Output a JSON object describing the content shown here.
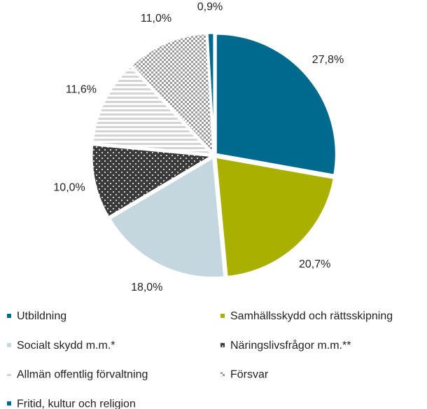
{
  "chart_data": {
    "type": "pie",
    "categories": [
      "Utbildning",
      "Samhällsskydd och rättsskipning",
      "Socialt skydd m.m.*",
      "Näringslivsfrågor m.m.**",
      "Allmän offentlig förvaltning",
      "Försvar",
      "Fritid, kultur och religion"
    ],
    "values": [
      27.8,
      20.7,
      18.0,
      10.0,
      11.6,
      11.0,
      0.9
    ],
    "value_labels": [
      "27,8%",
      "20,7%",
      "18,0%",
      "10,0%",
      "11,6%",
      "11,0%",
      "0,9%"
    ],
    "colors": [
      "#006a8e",
      "#a9b000",
      "#c5d7de",
      "#3a3a3a",
      "#d4d4d4",
      "#9a9a9a",
      "#006a8e"
    ],
    "patterns": [
      "solid",
      "solid",
      "solid",
      "dots",
      "stripes",
      "checker",
      "solid"
    ],
    "legend": "bottom"
  }
}
